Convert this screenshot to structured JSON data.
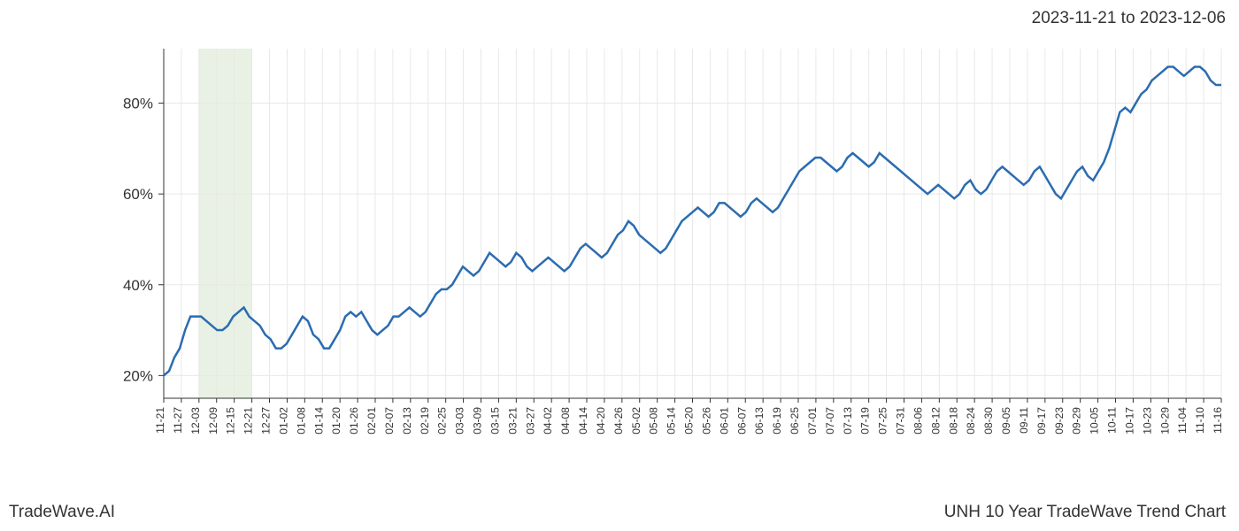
{
  "header": {
    "date_range": "2023-11-21 to 2023-12-06"
  },
  "footer": {
    "brand": "TradeWave.AI",
    "chart_title": "UNH 10 Year TradeWave Trend Chart"
  },
  "chart": {
    "type": "line",
    "background_color": "#ffffff",
    "grid_color": "#e8e8e8",
    "axis_color": "#333333",
    "line_color": "#2b6cb0",
    "line_width": 2.5,
    "highlight_band_color": "#d8e8d0",
    "highlight_band_opacity": 0.6,
    "highlight_start_index": 2,
    "highlight_end_index": 5,
    "y_axis": {
      "min": 15,
      "max": 92,
      "ticks": [
        20,
        40,
        60,
        80
      ],
      "tick_labels": [
        "20%",
        "40%",
        "60%",
        "80%"
      ],
      "label_fontsize": 17
    },
    "x_axis": {
      "labels": [
        "11-21",
        "11-27",
        "12-03",
        "12-09",
        "12-15",
        "12-21",
        "12-27",
        "01-02",
        "01-08",
        "01-14",
        "01-20",
        "01-26",
        "02-01",
        "02-07",
        "02-13",
        "02-19",
        "02-25",
        "03-03",
        "03-09",
        "03-15",
        "03-21",
        "03-27",
        "04-02",
        "04-08",
        "04-14",
        "04-20",
        "04-26",
        "05-02",
        "05-08",
        "05-14",
        "05-20",
        "05-26",
        "06-01",
        "06-07",
        "06-13",
        "06-19",
        "06-25",
        "07-01",
        "07-07",
        "07-13",
        "07-19",
        "07-25",
        "07-31",
        "08-06",
        "08-12",
        "08-18",
        "08-24",
        "08-30",
        "09-05",
        "09-11",
        "09-17",
        "09-23",
        "09-29",
        "10-05",
        "10-11",
        "10-17",
        "10-23",
        "10-29",
        "11-04",
        "11-10",
        "11-16"
      ],
      "label_fontsize": 12,
      "rotation": 90
    },
    "data": {
      "values": [
        20,
        21,
        24,
        26,
        30,
        33,
        33,
        33,
        32,
        31,
        30,
        30,
        31,
        33,
        34,
        35,
        33,
        32,
        31,
        29,
        28,
        26,
        26,
        27,
        29,
        31,
        33,
        32,
        29,
        28,
        26,
        26,
        28,
        30,
        33,
        34,
        33,
        34,
        32,
        30,
        29,
        30,
        31,
        33,
        33,
        34,
        35,
        34,
        33,
        34,
        36,
        38,
        39,
        39,
        40,
        42,
        44,
        43,
        42,
        43,
        45,
        47,
        46,
        45,
        44,
        45,
        47,
        46,
        44,
        43,
        44,
        45,
        46,
        45,
        44,
        43,
        44,
        46,
        48,
        49,
        48,
        47,
        46,
        47,
        49,
        51,
        52,
        54,
        53,
        51,
        50,
        49,
        48,
        47,
        48,
        50,
        52,
        54,
        55,
        56,
        57,
        56,
        55,
        56,
        58,
        58,
        57,
        56,
        55,
        56,
        58,
        59,
        58,
        57,
        56,
        57,
        59,
        61,
        63,
        65,
        66,
        67,
        68,
        68,
        67,
        66,
        65,
        66,
        68,
        69,
        68,
        67,
        66,
        67,
        69,
        68,
        67,
        66,
        65,
        64,
        63,
        62,
        61,
        60,
        61,
        62,
        61,
        60,
        59,
        60,
        62,
        63,
        61,
        60,
        61,
        63,
        65,
        66,
        65,
        64,
        63,
        62,
        63,
        65,
        66,
        64,
        62,
        60,
        59,
        61,
        63,
        65,
        66,
        64,
        63,
        65,
        67,
        70,
        74,
        78,
        79,
        78,
        80,
        82,
        83,
        85,
        86,
        87,
        88,
        88,
        87,
        86,
        87,
        88,
        88,
        87,
        85,
        84,
        84
      ]
    }
  }
}
